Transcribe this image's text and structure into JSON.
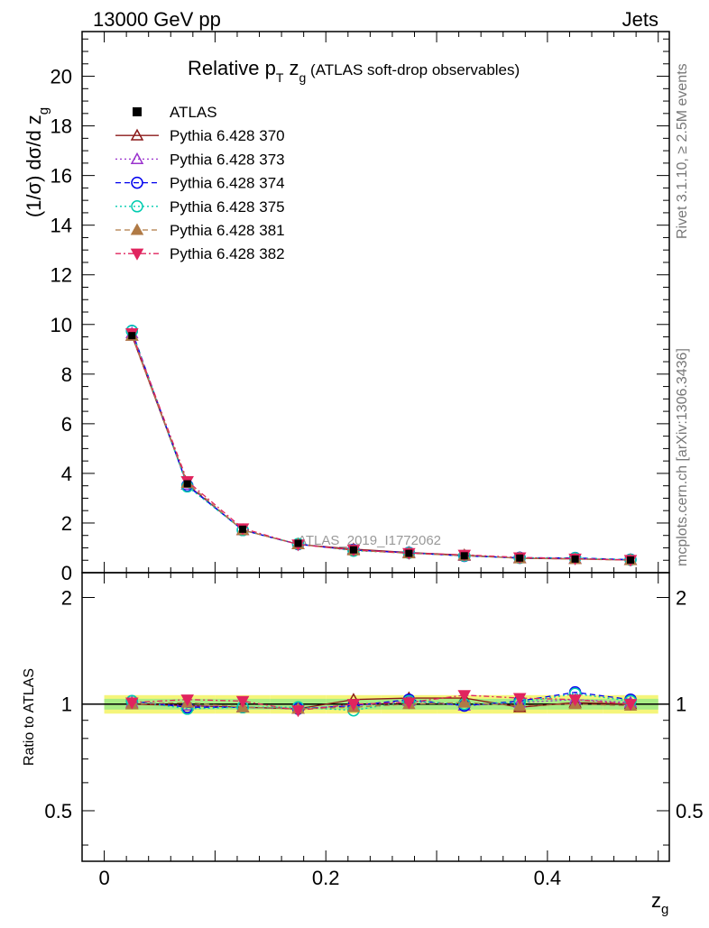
{
  "header": {
    "left": "13000 GeV pp",
    "right": "Jets"
  },
  "side": {
    "rivet": "Rivet 3.1.10, ≥ 2.5M events",
    "mcplots": "mcplots.cern.ch [arXiv:1306.3436]"
  },
  "chart_data": {
    "type": "line",
    "title": "Relative pT zg (ATLAS soft-drop observables)",
    "title_parts": {
      "a": "Relative p",
      "sub1": "T",
      "b": " z",
      "sub2": "g",
      "c": " (ATLAS soft-drop observables)"
    },
    "watermark": "ATLAS_2019_I1772062",
    "ylabel": "(1/σ) dσ/d z",
    "ylabel_sub": "g",
    "ratio_ylabel": "Ratio to ATLAS",
    "xlabel": "z",
    "xlabel_sub": "g",
    "xlim": [
      -0.02,
      0.51
    ],
    "ylim": [
      0,
      21.8
    ],
    "ratio_ylim": [
      0.36,
      2.35
    ],
    "ratio_log": true,
    "x_ticks": [
      "0",
      "0.2",
      "0.4"
    ],
    "x_tick_values": [
      0,
      0.2,
      0.4
    ],
    "y_ticks": [
      "0",
      "2",
      "4",
      "6",
      "8",
      "10",
      "12",
      "14",
      "16",
      "18",
      "20"
    ],
    "y_tick_values": [
      0,
      2,
      4,
      6,
      8,
      10,
      12,
      14,
      16,
      18,
      20
    ],
    "ratio_ticks": [
      "0.5",
      "1",
      "2"
    ],
    "ratio_tick_values": [
      0.5,
      1,
      2
    ],
    "x": [
      0.025,
      0.075,
      0.125,
      0.175,
      0.225,
      0.275,
      0.325,
      0.375,
      0.425,
      0.475
    ],
    "data": {
      "name": "ATLAS",
      "values": [
        9.55,
        3.58,
        1.75,
        1.18,
        0.92,
        0.78,
        0.68,
        0.59,
        0.55,
        0.51
      ],
      "color": "#000000",
      "band_outer": "#f5f57a",
      "band_inner": "#a8ec84"
    },
    "series": [
      {
        "name": "Pythia 6.428 370",
        "color": "#8b1a1a",
        "marker": "triangle-open",
        "dash": "",
        "ratio": [
          1.0,
          0.99,
          0.98,
          0.97,
          1.03,
          1.04,
          1.04,
          0.98,
          1.01,
          1.0
        ]
      },
      {
        "name": "Pythia 6.428 373",
        "color": "#9a32cd",
        "marker": "triangle-open",
        "dash": "2,3",
        "ratio": [
          1.01,
          0.99,
          0.98,
          0.97,
          0.99,
          1.02,
          0.99,
          1.01,
          1.03,
          1.01
        ]
      },
      {
        "name": "Pythia 6.428 374",
        "color": "#0000ee",
        "marker": "circle-open",
        "dash": "6,4",
        "ratio": [
          1.02,
          0.98,
          0.98,
          0.97,
          0.99,
          1.03,
          0.99,
          1.02,
          1.08,
          1.03
        ]
      },
      {
        "name": "Pythia 6.428 375",
        "color": "#00ccb0",
        "marker": "circle-open",
        "dash": "2,3",
        "ratio": [
          1.02,
          0.97,
          0.98,
          0.98,
          0.96,
          1.02,
          1.0,
          1.01,
          1.07,
          1.02
        ]
      },
      {
        "name": "Pythia 6.428 381",
        "color": "#b07a45",
        "marker": "triangle-filled",
        "dash": "6,4",
        "ratio": [
          1.0,
          1.01,
          0.98,
          0.97,
          0.98,
          1.0,
          1.01,
          0.99,
          1.0,
          0.99
        ]
      },
      {
        "name": "Pythia 6.428 382",
        "color": "#e0245e",
        "marker": "triangle-down-filled",
        "dash": "6,3,2,3",
        "ratio": [
          1.01,
          1.03,
          1.02,
          0.96,
          1.0,
          1.01,
          1.06,
          1.04,
          1.03,
          1.0
        ]
      }
    ],
    "grid": false,
    "legend_position": "top-left"
  }
}
